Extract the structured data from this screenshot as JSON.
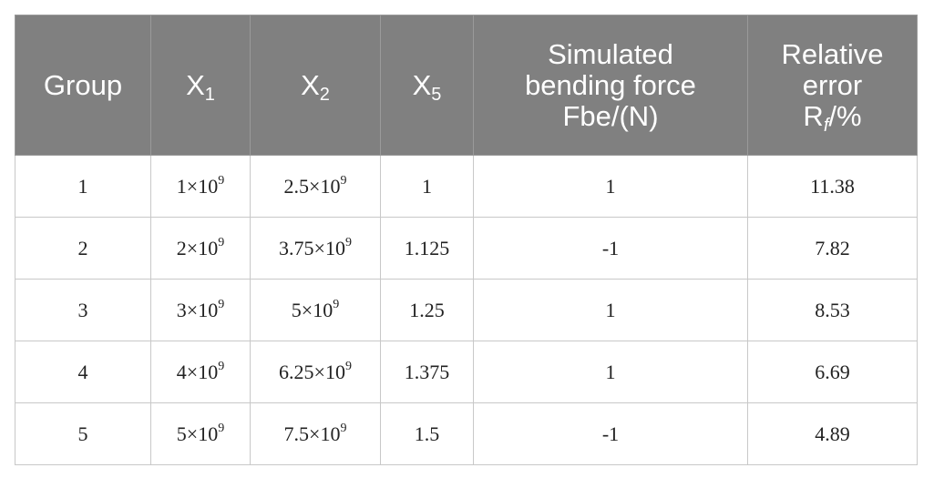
{
  "table": {
    "header": [
      {
        "text": "Group"
      },
      {
        "text": "X",
        "sub": "1"
      },
      {
        "text": "X",
        "sub": "2"
      },
      {
        "text": "X",
        "sub": "5"
      },
      {
        "text": "Simulated bending force Fbe/(N)"
      },
      {
        "text": "Relative error R",
        "sub": "f",
        "after": "/%"
      }
    ],
    "rows": [
      [
        {
          "text": "1"
        },
        {
          "text": "1×10",
          "sup": "9"
        },
        {
          "text": "2.5×10",
          "sup": "9"
        },
        {
          "text": "1"
        },
        {
          "text": "1"
        },
        {
          "text": "11.38"
        }
      ],
      [
        {
          "text": "2"
        },
        {
          "text": "2×10",
          "sup": "9"
        },
        {
          "text": "3.75×10",
          "sup": "9"
        },
        {
          "text": "1.125"
        },
        {
          "text": "-1"
        },
        {
          "text": "7.82"
        }
      ],
      [
        {
          "text": "3"
        },
        {
          "text": "3×10",
          "sup": "9"
        },
        {
          "text": "5×10",
          "sup": "9"
        },
        {
          "text": "1.25"
        },
        {
          "text": "1"
        },
        {
          "text": "8.53"
        }
      ],
      [
        {
          "text": "4"
        },
        {
          "text": "4×10",
          "sup": "9"
        },
        {
          "text": "6.25×10",
          "sup": "9"
        },
        {
          "text": "1.375"
        },
        {
          "text": "1"
        },
        {
          "text": "6.69"
        }
      ],
      [
        {
          "text": "5"
        },
        {
          "text": "5×10",
          "sup": "9"
        },
        {
          "text": "7.5×10",
          "sup": "9"
        },
        {
          "text": "1.5"
        },
        {
          "text": "-1"
        },
        {
          "text": "4.89"
        }
      ]
    ]
  }
}
